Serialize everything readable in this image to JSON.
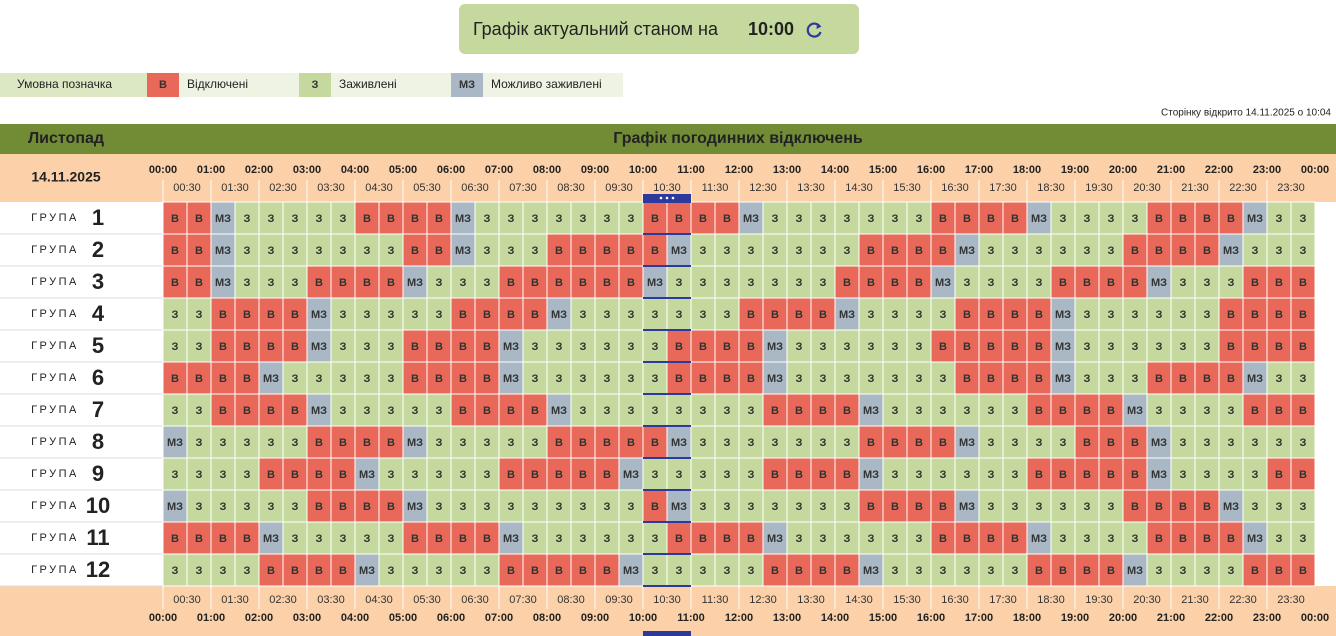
{
  "header": {
    "caption": "Графік актуальний станом на",
    "time": "10:00"
  },
  "legend": {
    "title": "Умовна позначка",
    "items": [
      {
        "code": "В",
        "label": "Відключені"
      },
      {
        "code": "З",
        "label": "Заживлені"
      },
      {
        "code": "МЗ",
        "label": "Можливо заживлені"
      }
    ]
  },
  "opened_note": "Сторінку відкрито 14.11.2025 о 10:04",
  "table": {
    "month": "Листопад",
    "title": "Графік погодинних відключень",
    "date": "14.11.2025",
    "hours": [
      "00:00",
      "01:00",
      "02:00",
      "03:00",
      "04:00",
      "05:00",
      "06:00",
      "07:00",
      "08:00",
      "09:00",
      "10:00",
      "11:00",
      "12:00",
      "13:00",
      "14:00",
      "15:00",
      "16:00",
      "17:00",
      "18:00",
      "19:00",
      "20:00",
      "21:00",
      "22:00",
      "23:00",
      "00:00"
    ],
    "half_hours": [
      "00:30",
      "01:30",
      "02:30",
      "03:30",
      "04:30",
      "05:30",
      "06:30",
      "07:30",
      "08:30",
      "09:30",
      "10:30",
      "11:30",
      "12:30",
      "13:30",
      "14:30",
      "15:30",
      "16:30",
      "17:30",
      "18:30",
      "19:30",
      "20:30",
      "21:30",
      "22:30",
      "23:30"
    ],
    "group_word": "ГРУПА",
    "groups": [
      {
        "number": "1",
        "cells": [
          "В",
          "В",
          "МЗ",
          "З",
          "З",
          "З",
          "З",
          "З",
          "В",
          "В",
          "В",
          "В",
          "МЗ",
          "З",
          "З",
          "З",
          "З",
          "З",
          "З",
          "З",
          "В",
          "В",
          "В",
          "В",
          "МЗ",
          "З",
          "З",
          "З",
          "З",
          "З",
          "З",
          "З",
          "В",
          "В",
          "В",
          "В",
          "МЗ",
          "З",
          "З",
          "З",
          "З",
          "В",
          "В",
          "В",
          "В",
          "МЗ",
          "З",
          "З"
        ]
      },
      {
        "number": "2",
        "cells": [
          "В",
          "В",
          "МЗ",
          "З",
          "З",
          "З",
          "З",
          "З",
          "З",
          "З",
          "В",
          "В",
          "МЗ",
          "З",
          "З",
          "З",
          "В",
          "В",
          "В",
          "В",
          "В",
          "МЗ",
          "З",
          "З",
          "З",
          "З",
          "З",
          "З",
          "З",
          "В",
          "В",
          "В",
          "В",
          "МЗ",
          "З",
          "З",
          "З",
          "З",
          "З",
          "З",
          "В",
          "В",
          "В",
          "В",
          "МЗ",
          "З",
          "З",
          "З"
        ]
      },
      {
        "number": "3",
        "cells": [
          "В",
          "В",
          "МЗ",
          "З",
          "З",
          "З",
          "В",
          "В",
          "В",
          "В",
          "МЗ",
          "З",
          "З",
          "З",
          "В",
          "В",
          "В",
          "В",
          "В",
          "В",
          "МЗ",
          "З",
          "З",
          "З",
          "З",
          "З",
          "З",
          "З",
          "В",
          "В",
          "В",
          "В",
          "МЗ",
          "З",
          "З",
          "З",
          "З",
          "В",
          "В",
          "В",
          "В",
          "МЗ",
          "З",
          "З",
          "З",
          "В",
          "В",
          "В"
        ]
      },
      {
        "number": "4",
        "cells": [
          "З",
          "З",
          "В",
          "В",
          "В",
          "В",
          "МЗ",
          "З",
          "З",
          "З",
          "З",
          "З",
          "В",
          "В",
          "В",
          "В",
          "МЗ",
          "З",
          "З",
          "З",
          "З",
          "З",
          "З",
          "З",
          "В",
          "В",
          "В",
          "В",
          "МЗ",
          "З",
          "З",
          "З",
          "З",
          "В",
          "В",
          "В",
          "В",
          "МЗ",
          "З",
          "З",
          "З",
          "З",
          "З",
          "З",
          "В",
          "В",
          "В",
          "В"
        ]
      },
      {
        "number": "5",
        "cells": [
          "З",
          "З",
          "В",
          "В",
          "В",
          "В",
          "МЗ",
          "З",
          "З",
          "З",
          "В",
          "В",
          "В",
          "В",
          "МЗ",
          "З",
          "З",
          "З",
          "З",
          "З",
          "З",
          "В",
          "В",
          "В",
          "В",
          "МЗ",
          "З",
          "З",
          "З",
          "З",
          "З",
          "З",
          "В",
          "В",
          "В",
          "В",
          "В",
          "МЗ",
          "З",
          "З",
          "З",
          "З",
          "З",
          "З",
          "В",
          "В",
          "В",
          "В"
        ]
      },
      {
        "number": "6",
        "cells": [
          "В",
          "В",
          "В",
          "В",
          "МЗ",
          "З",
          "З",
          "З",
          "З",
          "З",
          "В",
          "В",
          "В",
          "В",
          "МЗ",
          "З",
          "З",
          "З",
          "З",
          "З",
          "З",
          "В",
          "В",
          "В",
          "В",
          "МЗ",
          "З",
          "З",
          "З",
          "З",
          "З",
          "З",
          "З",
          "В",
          "В",
          "В",
          "В",
          "МЗ",
          "З",
          "З",
          "З",
          "В",
          "В",
          "В",
          "В",
          "МЗ",
          "З",
          "З"
        ]
      },
      {
        "number": "7",
        "cells": [
          "З",
          "З",
          "В",
          "В",
          "В",
          "В",
          "МЗ",
          "З",
          "З",
          "З",
          "З",
          "З",
          "В",
          "В",
          "В",
          "В",
          "МЗ",
          "З",
          "З",
          "З",
          "З",
          "З",
          "З",
          "З",
          "З",
          "В",
          "В",
          "В",
          "В",
          "МЗ",
          "З",
          "З",
          "З",
          "З",
          "З",
          "З",
          "В",
          "В",
          "В",
          "В",
          "МЗ",
          "З",
          "З",
          "З",
          "З",
          "В",
          "В",
          "В"
        ]
      },
      {
        "number": "8",
        "cells": [
          "МЗ",
          "З",
          "З",
          "З",
          "З",
          "З",
          "В",
          "В",
          "В",
          "В",
          "МЗ",
          "З",
          "З",
          "З",
          "З",
          "З",
          "В",
          "В",
          "В",
          "В",
          "В",
          "МЗ",
          "З",
          "З",
          "З",
          "З",
          "З",
          "З",
          "З",
          "В",
          "В",
          "В",
          "В",
          "МЗ",
          "З",
          "З",
          "З",
          "З",
          "В",
          "В",
          "В",
          "МЗ",
          "З",
          "З",
          "З",
          "З",
          "З",
          "З"
        ]
      },
      {
        "number": "9",
        "cells": [
          "З",
          "З",
          "З",
          "З",
          "В",
          "В",
          "В",
          "В",
          "МЗ",
          "З",
          "З",
          "З",
          "З",
          "З",
          "В",
          "В",
          "В",
          "В",
          "В",
          "МЗ",
          "З",
          "З",
          "З",
          "З",
          "З",
          "В",
          "В",
          "В",
          "В",
          "МЗ",
          "З",
          "З",
          "З",
          "З",
          "З",
          "З",
          "В",
          "В",
          "В",
          "В",
          "В",
          "МЗ",
          "З",
          "З",
          "З",
          "З",
          "В",
          "В"
        ]
      },
      {
        "number": "10",
        "cells": [
          "МЗ",
          "З",
          "З",
          "З",
          "З",
          "З",
          "В",
          "В",
          "В",
          "В",
          "МЗ",
          "З",
          "З",
          "З",
          "З",
          "З",
          "З",
          "З",
          "З",
          "З",
          "В",
          "МЗ",
          "З",
          "З",
          "З",
          "З",
          "З",
          "З",
          "З",
          "В",
          "В",
          "В",
          "В",
          "МЗ",
          "З",
          "З",
          "З",
          "З",
          "З",
          "З",
          "В",
          "В",
          "В",
          "В",
          "МЗ",
          "З",
          "З",
          "З"
        ]
      },
      {
        "number": "11",
        "cells": [
          "В",
          "В",
          "В",
          "В",
          "МЗ",
          "З",
          "З",
          "З",
          "З",
          "З",
          "В",
          "В",
          "В",
          "В",
          "МЗ",
          "З",
          "З",
          "З",
          "З",
          "З",
          "З",
          "В",
          "В",
          "В",
          "В",
          "МЗ",
          "З",
          "З",
          "З",
          "З",
          "З",
          "З",
          "В",
          "В",
          "В",
          "В",
          "МЗ",
          "З",
          "З",
          "З",
          "З",
          "В",
          "В",
          "В",
          "В",
          "МЗ",
          "З",
          "З"
        ]
      },
      {
        "number": "12",
        "cells": [
          "З",
          "З",
          "З",
          "З",
          "В",
          "В",
          "В",
          "В",
          "МЗ",
          "З",
          "З",
          "З",
          "З",
          "З",
          "В",
          "В",
          "В",
          "В",
          "В",
          "МЗ",
          "З",
          "З",
          "З",
          "З",
          "З",
          "В",
          "В",
          "В",
          "В",
          "МЗ",
          "З",
          "З",
          "З",
          "З",
          "З",
          "З",
          "В",
          "В",
          "В",
          "В",
          "МЗ",
          "З",
          "З",
          "З",
          "З",
          "В",
          "В",
          "В"
        ]
      }
    ]
  }
}
